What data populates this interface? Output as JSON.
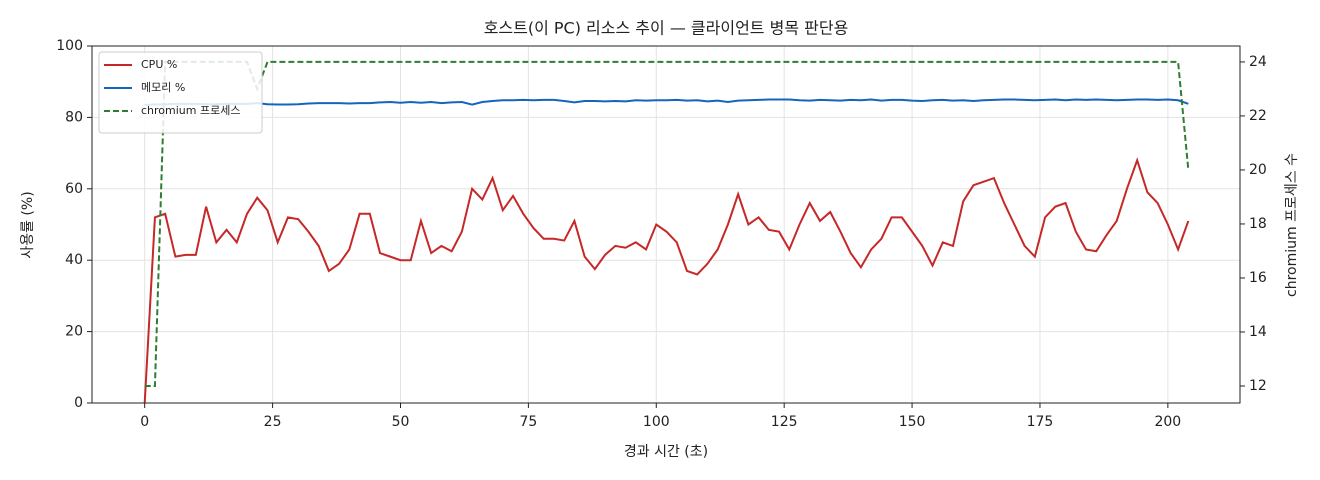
{
  "chart_data": {
    "type": "line",
    "title": "호스트(이 PC) 리소스 추이 — 클라이언트 병목 판단용",
    "x_label": "경과 시간 (초)",
    "y_label": "사용률 (%)",
    "y2_label": "chromium 프로세스 수",
    "x": [
      0,
      2,
      4,
      6,
      8,
      10,
      12,
      14,
      16,
      18,
      20,
      22,
      24,
      26,
      28,
      30,
      32,
      34,
      36,
      38,
      40,
      42,
      44,
      46,
      48,
      50,
      52,
      54,
      56,
      58,
      60,
      62,
      64,
      66,
      68,
      70,
      72,
      74,
      76,
      78,
      80,
      82,
      84,
      86,
      88,
      90,
      92,
      94,
      96,
      98,
      100,
      102,
      104,
      106,
      108,
      110,
      112,
      114,
      116,
      118,
      120,
      122,
      124,
      126,
      128,
      130,
      132,
      134,
      136,
      138,
      140,
      142,
      144,
      146,
      148,
      150,
      152,
      154,
      156,
      158,
      160,
      162,
      164,
      166,
      168,
      170,
      172,
      174,
      176,
      178,
      180,
      182,
      184,
      186,
      188,
      190,
      192,
      194,
      196,
      198,
      200,
      202,
      204
    ],
    "series": [
      {
        "name": "CPU %",
        "color": "#c62828",
        "linestyle": "solid",
        "axis": "y",
        "values": [
          0,
          52,
          53,
          41,
          41.5,
          41.5,
          55,
          45,
          48.5,
          45,
          53,
          57.5,
          54,
          45,
          52,
          51.5,
          48,
          44,
          37,
          39,
          43,
          53,
          53,
          42,
          41,
          40,
          40,
          51,
          42,
          44,
          42.5,
          48,
          60,
          57,
          63,
          54,
          58,
          53,
          49,
          46,
          46,
          45.5,
          51,
          41,
          37.5,
          41.5,
          44,
          43.5,
          45,
          43,
          50,
          48,
          45,
          37,
          36,
          39,
          43,
          50,
          58.5,
          50,
          52,
          48.5,
          48,
          43,
          50,
          56,
          51,
          53.5,
          48,
          42,
          38,
          43,
          46,
          52,
          52,
          48,
          44,
          38.5,
          45,
          44,
          56.5,
          61,
          62,
          63,
          56,
          50,
          44,
          41,
          52,
          55,
          56,
          48,
          43,
          42.5,
          47,
          51,
          60,
          68,
          59,
          56,
          50,
          43,
          51
        ]
      },
      {
        "name": "메모리 %",
        "color": "#1565c0",
        "linestyle": "solid",
        "axis": "y",
        "values": [
          83.5,
          83.6,
          83.7,
          83.8,
          83.8,
          83.8,
          83.7,
          83.7,
          83.8,
          83.8,
          83.8,
          84,
          83.7,
          83.6,
          83.6,
          83.7,
          83.9,
          84,
          84,
          84,
          83.9,
          84,
          84,
          84.2,
          84.3,
          84.1,
          84.3,
          84.1,
          84.3,
          84,
          84.2,
          84.3,
          83.6,
          84.3,
          84.6,
          84.8,
          84.8,
          84.9,
          84.8,
          84.9,
          84.9,
          84.6,
          84.2,
          84.6,
          84.6,
          84.5,
          84.6,
          84.5,
          84.8,
          84.7,
          84.8,
          84.8,
          84.9,
          84.7,
          84.8,
          84.5,
          84.7,
          84.3,
          84.7,
          84.8,
          84.9,
          85,
          85,
          85,
          84.8,
          84.7,
          84.9,
          84.8,
          84.7,
          84.9,
          84.8,
          85,
          84.7,
          84.9,
          84.9,
          84.7,
          84.6,
          84.8,
          84.9,
          84.7,
          84.8,
          84.6,
          84.8,
          84.9,
          85,
          85,
          84.9,
          84.8,
          84.9,
          85,
          84.8,
          85,
          84.9,
          85,
          84.9,
          84.8,
          84.9,
          85,
          85,
          84.9,
          85,
          84.8,
          83.8
        ]
      },
      {
        "name": "chromium 프로세스",
        "color": "#2e7d32",
        "linestyle": "dashed",
        "axis": "y2",
        "values": [
          12,
          12,
          24,
          24,
          24,
          24,
          24,
          24,
          24,
          24,
          24,
          23,
          24,
          24,
          24,
          24,
          24,
          24,
          24,
          24,
          24,
          24,
          24,
          24,
          24,
          24,
          24,
          24,
          24,
          24,
          24,
          24,
          24,
          24,
          24,
          24,
          24,
          24,
          24,
          24,
          24,
          24,
          24,
          24,
          24,
          24,
          24,
          24,
          24,
          24,
          24,
          24,
          24,
          24,
          24,
          24,
          24,
          24,
          24,
          24,
          24,
          24,
          24,
          24,
          24,
          24,
          24,
          24,
          24,
          24,
          24,
          24,
          24,
          24,
          24,
          24,
          24,
          24,
          24,
          24,
          24,
          24,
          24,
          24,
          24,
          24,
          24,
          24,
          24,
          24,
          24,
          24,
          24,
          24,
          24,
          24,
          24,
          24,
          24,
          24,
          24,
          24,
          20
        ]
      }
    ],
    "xlim": [
      -10.3,
      214.1
    ],
    "xticks": [
      0,
      25,
      50,
      75,
      100,
      125,
      150,
      175,
      200
    ],
    "ylim": [
      0,
      100
    ],
    "yticks": [
      0,
      20,
      40,
      60,
      80,
      100
    ],
    "y2lim": [
      11.37,
      24.59
    ],
    "y2ticks": [
      12,
      14,
      16,
      18,
      20,
      22,
      24
    ],
    "grid": true,
    "legend": "upper left"
  }
}
